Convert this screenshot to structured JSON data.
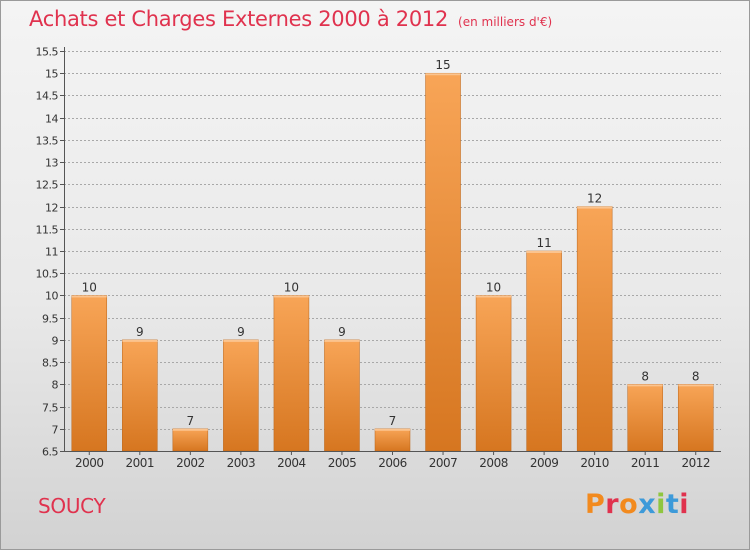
{
  "header": {
    "title": "Achats et Charges Externes 2000 à 2012",
    "unit": "(en milliers d'€)"
  },
  "footer": {
    "commune": "SOUCY",
    "logo_text": "Proxiti",
    "logo_colors": [
      "#f28a1e",
      "#e0324e",
      "#f28a1e",
      "#3d9ad9",
      "#8fc63f",
      "#3d9ad9",
      "#e0324e"
    ]
  },
  "colors": {
    "title": "#e0324e",
    "bar_light": "#f8a557",
    "bar_dark": "#d67620",
    "grid": "#a8a8a8",
    "axis": "#555555",
    "text": "#333333"
  },
  "chart_data": {
    "type": "bar",
    "categories": [
      "2000",
      "2001",
      "2002",
      "2003",
      "2004",
      "2005",
      "2006",
      "2007",
      "2008",
      "2009",
      "2010",
      "2011",
      "2012"
    ],
    "values": [
      10,
      9,
      7,
      9,
      10,
      9,
      7,
      15,
      10,
      11,
      12,
      8,
      8
    ],
    "data_labels": [
      "10",
      "9",
      "7",
      "9",
      "10",
      "9",
      "7",
      "15",
      "10",
      "11",
      "12",
      "8",
      "8"
    ],
    "ylim": [
      6.5,
      15.5
    ],
    "yticks": [
      "6.5",
      "7",
      "7.5",
      "8",
      "8.5",
      "9",
      "9.5",
      "10",
      "10.5",
      "11",
      "11.5",
      "12",
      "12.5",
      "13",
      "13.5",
      "14",
      "14.5",
      "15",
      "15.5"
    ],
    "grid": true,
    "legend": "none",
    "xlabel": "",
    "ylabel": ""
  }
}
